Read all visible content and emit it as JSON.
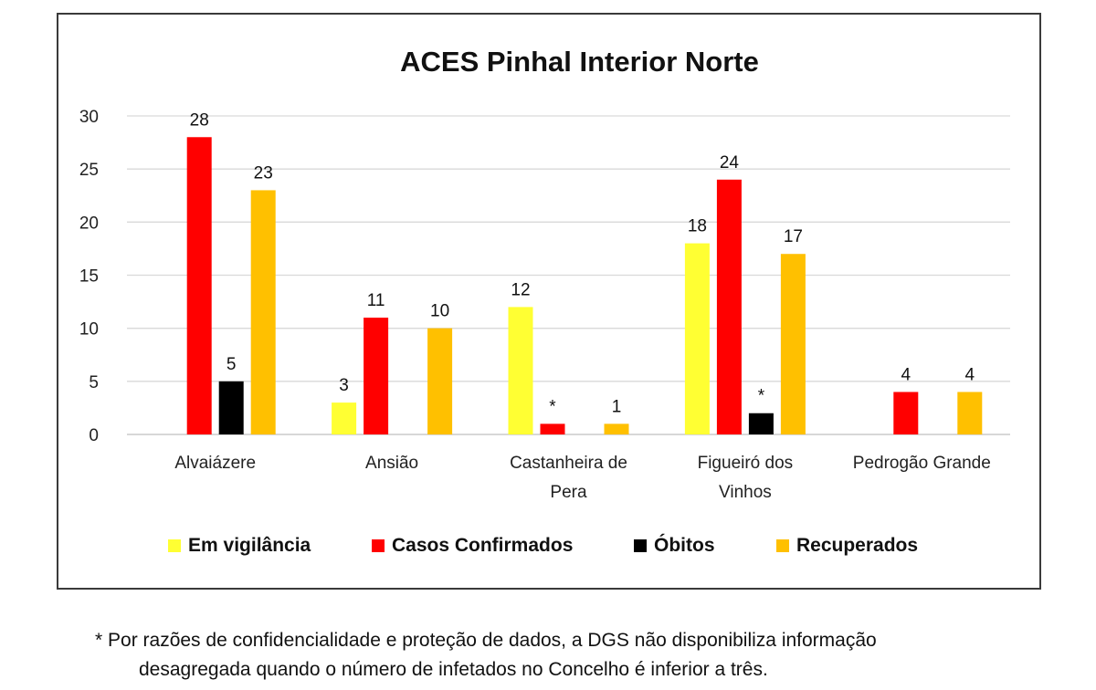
{
  "chart_data": {
    "type": "bar",
    "title": "ACES Pinhal Interior Norte",
    "xlabel": "",
    "ylabel": "",
    "ylim": [
      0,
      30
    ],
    "yticks": [
      0,
      5,
      10,
      15,
      20,
      25,
      30
    ],
    "grid": true,
    "legend_position": "bottom",
    "categories": [
      [
        "Alvaiázere"
      ],
      [
        "Ansião"
      ],
      [
        "Castanheira de",
        "Pera"
      ],
      [
        "Figueiró dos",
        "Vinhos"
      ],
      [
        "Pedrogão Grande"
      ]
    ],
    "series": [
      {
        "name": "Em vigilância",
        "color": "#ffff33",
        "values": [
          null,
          3,
          12,
          18,
          null
        ],
        "labels": [
          "",
          "3",
          "12",
          "18",
          ""
        ]
      },
      {
        "name": "Casos Confirmados",
        "color": "#ff0000",
        "values": [
          28,
          11,
          1,
          24,
          4
        ],
        "labels": [
          "28",
          "11",
          "*",
          "24",
          "4"
        ]
      },
      {
        "name": "Óbitos",
        "color": "#000000",
        "values": [
          5,
          null,
          null,
          2,
          null
        ],
        "labels": [
          "5",
          "",
          "",
          "*",
          ""
        ]
      },
      {
        "name": "Recuperados",
        "color": "#ffc000",
        "values": [
          23,
          10,
          1,
          17,
          4
        ],
        "labels": [
          "23",
          "10",
          "1",
          "17",
          "4"
        ]
      }
    ]
  },
  "footnote": {
    "line1": "* Por razões de confidencialidade e proteção de dados, a DGS não disponibiliza informação",
    "line2": "desagregada quando o número de infetados no Concelho é inferior a três."
  }
}
